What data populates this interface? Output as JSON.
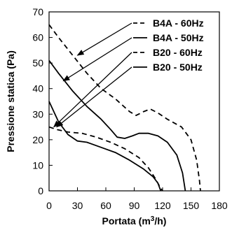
{
  "chart_data": {
    "type": "line",
    "title": "",
    "xlabel": "Portata (m³/h)",
    "xlabel_main": "Portata (m",
    "xlabel_sup": "3",
    "xlabel_tail": "/h)",
    "ylabel": "Pressione statica (Pa)",
    "xlim": [
      0,
      180
    ],
    "ylim": [
      0,
      70
    ],
    "xticks": [
      "0",
      "30",
      "60",
      "90",
      "120",
      "150",
      "180"
    ],
    "yticks": [
      "0",
      "10",
      "20",
      "30",
      "40",
      "50",
      "60",
      "70"
    ],
    "grid": false,
    "legend_position": "top-right",
    "series": [
      {
        "name": "B4A - 60Hz",
        "style": "dashed",
        "color": "#000000",
        "points": [
          [
            0,
            65
          ],
          [
            10,
            60
          ],
          [
            25,
            53
          ],
          [
            40,
            46
          ],
          [
            55,
            40
          ],
          [
            70,
            36
          ],
          [
            85,
            31
          ],
          [
            92,
            29.5
          ],
          [
            100,
            31
          ],
          [
            107,
            32
          ],
          [
            115,
            30.5
          ],
          [
            125,
            28
          ],
          [
            140,
            25
          ],
          [
            150,
            20
          ],
          [
            156,
            12
          ],
          [
            159,
            4
          ],
          [
            160,
            0
          ]
        ]
      },
      {
        "name": "B4A - 50Hz",
        "style": "solid",
        "color": "#000000",
        "points": [
          [
            0,
            51
          ],
          [
            10,
            46
          ],
          [
            25,
            39
          ],
          [
            40,
            33
          ],
          [
            55,
            28
          ],
          [
            65,
            24
          ],
          [
            72,
            21
          ],
          [
            80,
            20.5
          ],
          [
            88,
            21.5
          ],
          [
            95,
            22.5
          ],
          [
            105,
            22.5
          ],
          [
            115,
            21.5
          ],
          [
            125,
            19
          ],
          [
            135,
            14
          ],
          [
            141,
            7
          ],
          [
            144,
            0
          ]
        ]
      },
      {
        "name": "B20 - 60Hz",
        "style": "dashed",
        "color": "#000000",
        "points": [
          [
            0,
            25
          ],
          [
            8,
            24
          ],
          [
            20,
            23
          ],
          [
            35,
            22.5
          ],
          [
            50,
            21
          ],
          [
            65,
            19
          ],
          [
            80,
            16.5
          ],
          [
            95,
            13
          ],
          [
            105,
            9
          ],
          [
            112,
            5
          ],
          [
            118,
            1
          ],
          [
            120,
            0
          ]
        ]
      },
      {
        "name": "B20 - 50Hz",
        "style": "solid",
        "color": "#000000",
        "points": [
          [
            0,
            35
          ],
          [
            10,
            27
          ],
          [
            20,
            22
          ],
          [
            30,
            19.5
          ],
          [
            40,
            19
          ],
          [
            55,
            17
          ],
          [
            70,
            15
          ],
          [
            85,
            12
          ],
          [
            100,
            8.5
          ],
          [
            110,
            5.5
          ],
          [
            115,
            3
          ],
          [
            117,
            1
          ],
          [
            118,
            0
          ]
        ]
      }
    ],
    "legend": [
      {
        "label": "B4A - 60Hz",
        "style": "dashed",
        "arrow_target": [
          30,
          53
        ]
      },
      {
        "label": "B4A - 50Hz",
        "style": "solid",
        "arrow_target": [
          15,
          43
        ]
      },
      {
        "label": "B20 - 60Hz",
        "style": "dashed",
        "arrow_target": [
          5,
          25
        ]
      },
      {
        "label": "B20 - 50Hz",
        "style": "solid",
        "arrow_target": [
          8,
          25
        ]
      }
    ]
  }
}
